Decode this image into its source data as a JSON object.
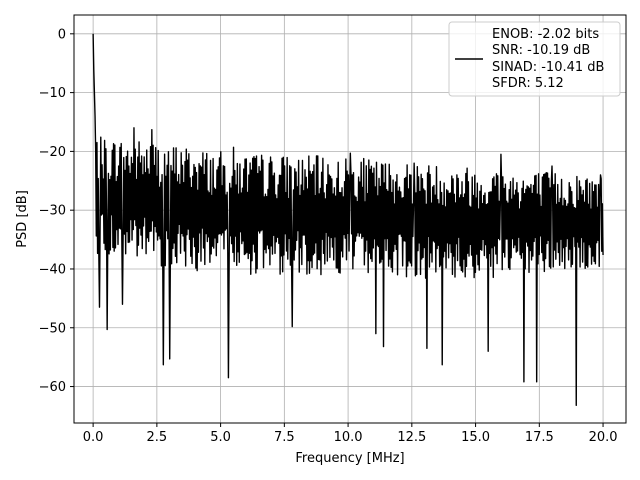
{
  "chart_data": {
    "type": "line",
    "xlabel": "Frequency [MHz]",
    "ylabel": "PSD [dB]",
    "xlim": [
      -0.75,
      20.9
    ],
    "ylim": [
      -66.2,
      3.2
    ],
    "x_ticks": [
      0.0,
      2.5,
      5.0,
      7.5,
      10.0,
      12.5,
      15.0,
      17.5,
      20.0
    ],
    "x_tick_labels": [
      "0.0",
      "2.5",
      "5.0",
      "7.5",
      "10.0",
      "12.5",
      "15.0",
      "17.5",
      "20.0"
    ],
    "y_ticks": [
      0,
      -10,
      -20,
      -30,
      -40,
      -50,
      -60
    ],
    "y_tick_labels": [
      "0",
      "−10",
      "−20",
      "−30",
      "−40",
      "−50",
      "−60"
    ],
    "grid": true,
    "legend_position": "top-right",
    "legend_lines": [
      "ENOB: -2.02 bits",
      "SNR: -10.19 dB",
      "SINAD: -10.41 dB",
      "SFDR: 5.12"
    ],
    "series": [
      {
        "color": "#000000",
        "x_start": 0.0,
        "x_end": 20.0,
        "num_points": 800,
        "peak": {
          "x": 0.0,
          "y": 0.0
        },
        "features": [
          {
            "x": 0.02,
            "y": -6
          },
          {
            "x": 0.05,
            "y": -10
          },
          {
            "x": 0.08,
            "y": -14
          },
          {
            "x": 0.25,
            "y": -46.5
          },
          {
            "x": 0.55,
            "y": -50.3
          },
          {
            "x": 1.15,
            "y": -46
          },
          {
            "x": 1.6,
            "y": -16
          },
          {
            "x": 2.3,
            "y": -16.3
          },
          {
            "x": 2.75,
            "y": -56.3
          },
          {
            "x": 3.0,
            "y": -55.3
          },
          {
            "x": 5.3,
            "y": -58.5
          },
          {
            "x": 5.5,
            "y": -19.3
          },
          {
            "x": 7.8,
            "y": -49.8
          },
          {
            "x": 10.1,
            "y": -20.3
          },
          {
            "x": 11.1,
            "y": -51
          },
          {
            "x": 11.4,
            "y": -53.2
          },
          {
            "x": 12.6,
            "y": -22
          },
          {
            "x": 13.1,
            "y": -53.5
          },
          {
            "x": 13.7,
            "y": -56.3
          },
          {
            "x": 15.5,
            "y": -54
          },
          {
            "x": 16.0,
            "y": -20.5
          },
          {
            "x": 16.9,
            "y": -59.2
          },
          {
            "x": 17.4,
            "y": -59.2
          },
          {
            "x": 18.0,
            "y": -22.5
          },
          {
            "x": 18.95,
            "y": -63.2
          },
          {
            "x": 19.9,
            "y": -24
          }
        ],
        "upper_envelope": [
          [
            0.2,
            -17.5
          ],
          [
            2.5,
            -18
          ],
          [
            5,
            -20
          ],
          [
            10,
            -21
          ],
          [
            15,
            -22.5
          ],
          [
            20,
            -24
          ]
        ],
        "lower_envelope": [
          [
            0.2,
            -38
          ],
          [
            5,
            -41
          ],
          [
            10,
            -41
          ],
          [
            15,
            -42
          ],
          [
            20,
            -40
          ]
        ]
      }
    ]
  }
}
